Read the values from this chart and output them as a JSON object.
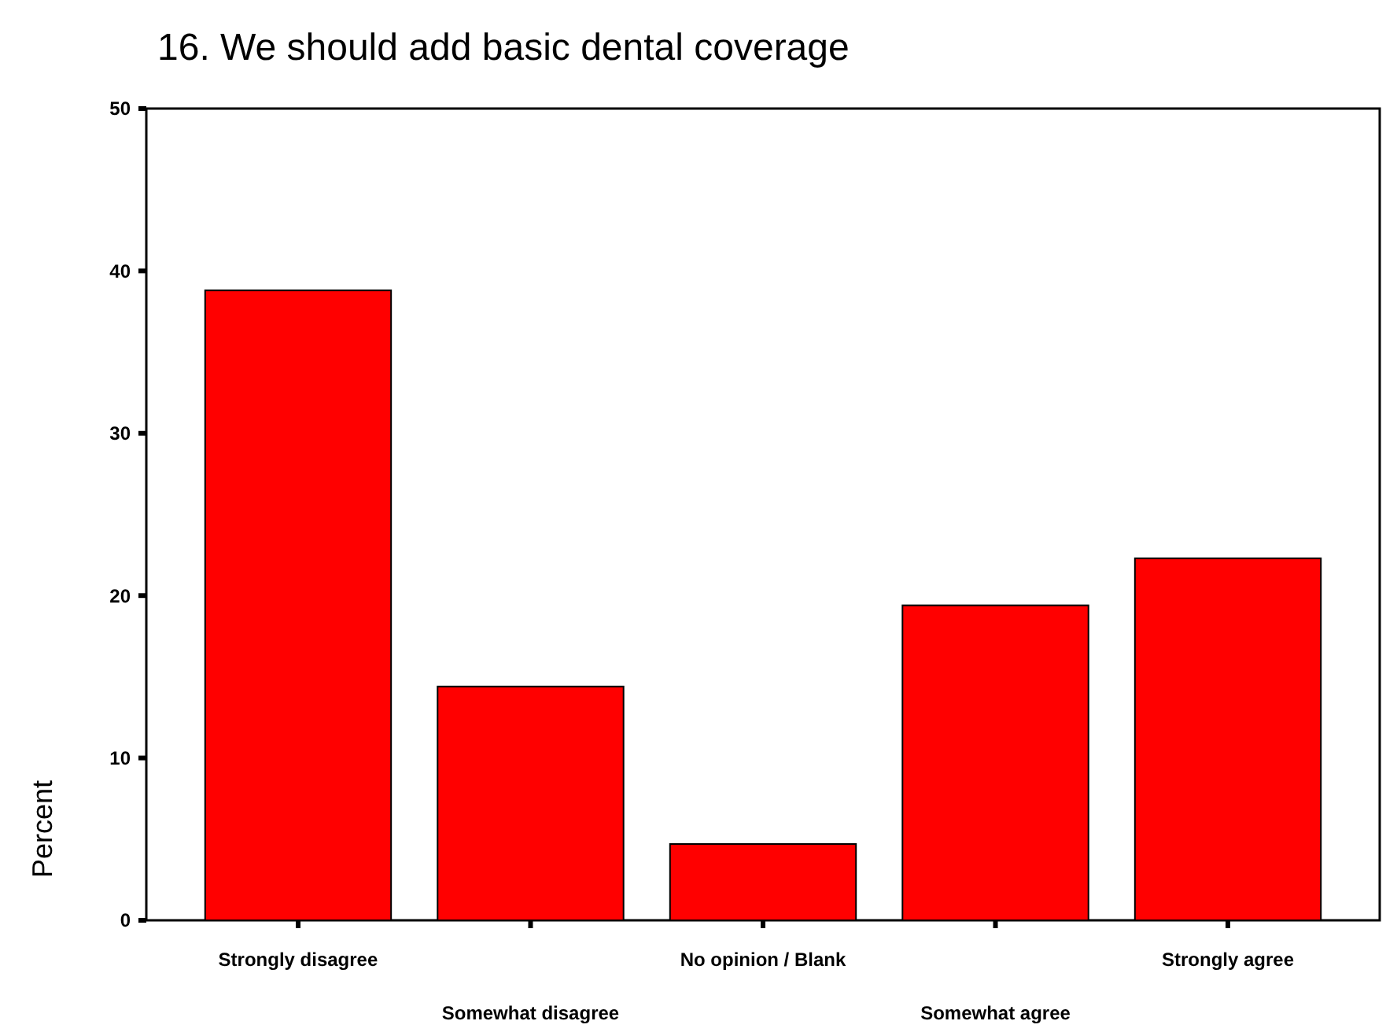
{
  "chart_data": {
    "type": "bar",
    "title": "16. We should add basic dental coverage",
    "ylabel": "Percent",
    "categories": [
      "Strongly disagree",
      "Somewhat disagree",
      "No opinion / Blank",
      "Somewhat agree",
      "Strongly agree"
    ],
    "values": [
      38.8,
      14.4,
      4.7,
      19.4,
      22.3
    ],
    "color": "#ff0000",
    "ylim": [
      0,
      50
    ],
    "yticks": [
      0,
      10,
      20,
      30,
      40,
      50
    ],
    "grid": false
  }
}
